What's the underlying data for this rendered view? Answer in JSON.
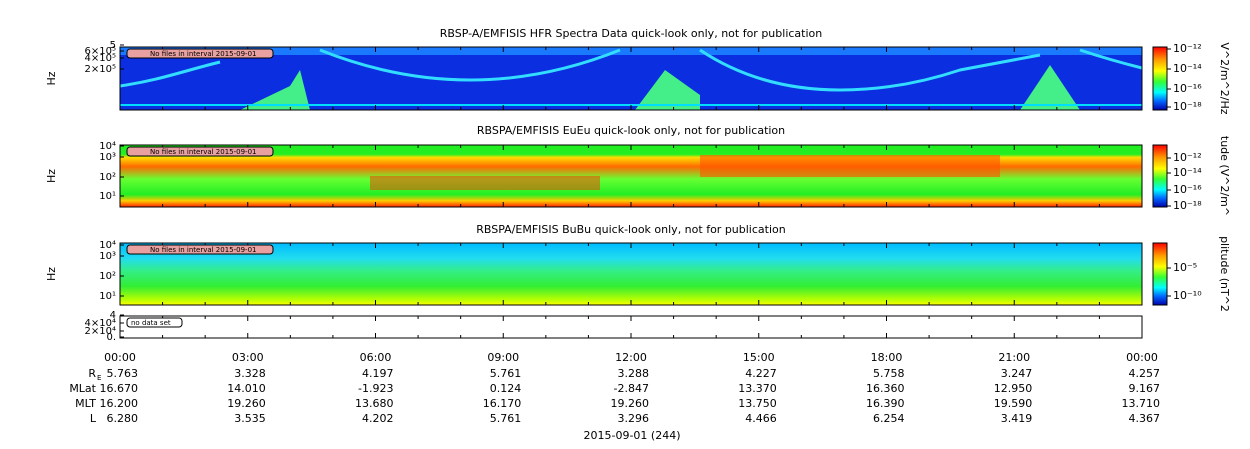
{
  "panels": [
    {
      "title": "RBSP-A/EMFISIS  HFR Spectra Data quick-look only, not for publication",
      "ylabel": "Hz",
      "yticks": [
        "5",
        "6×10⁵",
        "4×10⁵",
        "2×10⁵"
      ],
      "note": "No files in interval 2015-09-01",
      "colorbar_label": "V^2/m^2/Hz",
      "colorbar_ticks": [
        "10⁻¹²",
        "10⁻¹⁴",
        "10⁻¹⁶",
        "10⁻¹⁸"
      ]
    },
    {
      "title": "RBSPA/EMFISIS  EuEu quick-look only, not for publication",
      "ylabel": "Hz",
      "yticks": [
        "10⁴",
        "10³",
        "10²",
        "10¹"
      ],
      "note": "No files in interval 2015-09-01",
      "colorbar_label": "tude (V^2/m^",
      "colorbar_ticks": [
        "10⁻¹²",
        "10⁻¹⁴",
        "10⁻¹⁶",
        "10⁻¹⁸"
      ]
    },
    {
      "title": "RBSPA/EMFISIS  BuBu quick-look only, not for publication",
      "ylabel": "Hz",
      "yticks": [
        "10⁴",
        "10³",
        "10²",
        "10¹"
      ],
      "note": "No files in interval 2015-09-01",
      "colorbar_label": "plitude (nT^2",
      "colorbar_ticks": [
        "10⁻⁵",
        "10⁻¹⁰"
      ]
    },
    {
      "yticks": [
        "4",
        "4×10⁴",
        "2×10⁴",
        "0."
      ],
      "note": "no data set"
    }
  ],
  "time_labels": [
    "00:00",
    "03:00",
    "06:00",
    "09:00",
    "12:00",
    "15:00",
    "18:00",
    "21:00",
    "00:00"
  ],
  "ephemeris": {
    "rows": [
      {
        "label": "R",
        "label_sub": "E",
        "values": [
          "5.763",
          "3.328",
          "4.197",
          "5.761",
          "3.288",
          "4.227",
          "5.758",
          "3.247",
          "4.257"
        ]
      },
      {
        "label": "MLat",
        "values": [
          "16.670",
          "14.010",
          "-1.923",
          "0.124",
          "-2.847",
          "13.370",
          "16.360",
          "12.950",
          "9.167"
        ]
      },
      {
        "label": "MLT",
        "values": [
          "16.200",
          "19.260",
          "13.680",
          "16.170",
          "19.260",
          "13.750",
          "16.390",
          "19.590",
          "13.710"
        ]
      },
      {
        "label": "L",
        "values": [
          "6.280",
          "3.535",
          "4.202",
          "5.761",
          "3.296",
          "4.466",
          "6.254",
          "3.419",
          "4.367"
        ]
      }
    ]
  },
  "date_label": "2015-09-01 (244)"
}
